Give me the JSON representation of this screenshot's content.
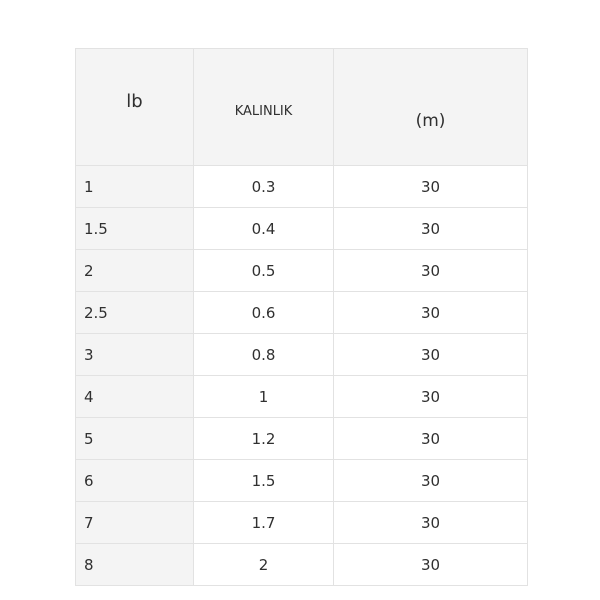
{
  "colors": {
    "page_background": "#ffffff",
    "header_background": "#f4f4f4",
    "first_column_background": "#f4f4f4",
    "cell_border": "#e2e2e2",
    "outer_border": "#d6d6d6",
    "text": "#303030"
  },
  "table": {
    "columns": [
      {
        "key": "lb",
        "label": "lb"
      },
      {
        "key": "kalinlik",
        "label": "KALINLIK"
      },
      {
        "key": "m",
        "label": "(m)"
      }
    ],
    "rows": [
      [
        "1",
        "0.3",
        "30"
      ],
      [
        "1.5",
        "0.4",
        "30"
      ],
      [
        "2",
        "0.5",
        "30"
      ],
      [
        "2.5",
        "0.6",
        "30"
      ],
      [
        "3",
        "0.8",
        "30"
      ],
      [
        "4",
        "1",
        "30"
      ],
      [
        "5",
        "1.2",
        "30"
      ],
      [
        "6",
        "1.5",
        "30"
      ],
      [
        "7",
        "1.7",
        "30"
      ],
      [
        "8",
        "2",
        "30"
      ]
    ]
  }
}
